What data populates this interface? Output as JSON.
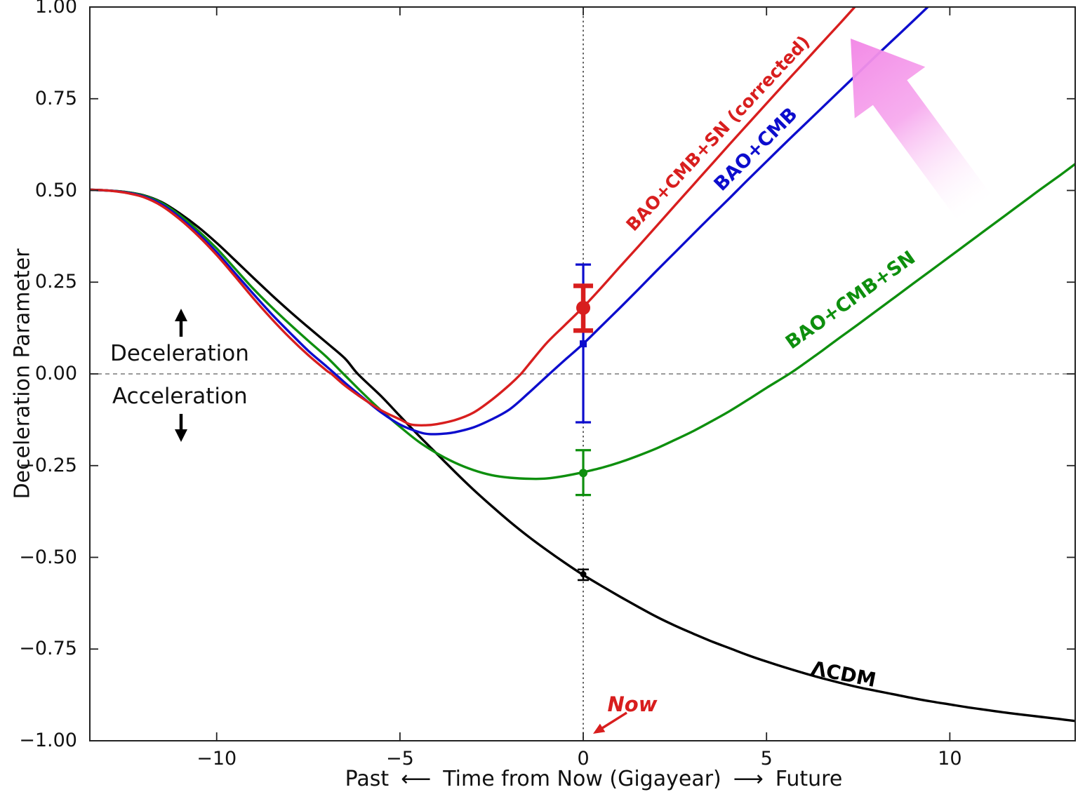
{
  "figure": {
    "y_axis_label": "Deceleration Parameter",
    "x_axis": {
      "past": "Past",
      "left_arrow": "⟵",
      "main": "Time from Now (Gigayear)",
      "right_arrow": "⟶",
      "future": "Future"
    },
    "deceleration_label": "Deceleration",
    "acceleration_label": "Acceleration",
    "now_label": "Now"
  },
  "colors": {
    "red": "#d81e1e",
    "blue": "#0d0dcd",
    "green": "#0e8f0e",
    "black": "#000000",
    "pink_arrow": "#f287e6",
    "dashed_line": "#7a7a7a",
    "axis": "#222222"
  },
  "chart_data": {
    "type": "line",
    "title": "",
    "xlabel": "Past ⟵ Time from Now (Gigayear) ⟶ Future",
    "ylabel": "Deceleration Parameter",
    "xlim": [
      -13.46,
      13.42
    ],
    "ylim": [
      -1.0,
      1.0
    ],
    "grid": false,
    "legend_position": "inline-rotated-labels",
    "x_ticks": {
      "values": [
        -10,
        -5,
        0,
        5,
        10
      ],
      "labels": [
        "−10",
        "−5",
        "0",
        "5",
        "10"
      ]
    },
    "y_ticks": {
      "values": [
        1.0,
        0.75,
        0.5,
        0.25,
        0.0,
        -0.25,
        -0.5,
        -0.75,
        -1.0
      ],
      "labels": [
        "1.00",
        "0.75",
        "0.50",
        "0.25",
        "0.00",
        "−0.25",
        "−0.50",
        "−0.75",
        "−1.00"
      ]
    },
    "reference_lines": {
      "horizontal_at_q": 0,
      "vertical_at_t": 0
    },
    "series": [
      {
        "label": "ΛCDM",
        "color": "#000000",
        "points": [
          [
            -13.46,
            0.502
          ],
          [
            -13,
            0.5
          ],
          [
            -12.5,
            0.496
          ],
          [
            -12,
            0.487
          ],
          [
            -11.5,
            0.468
          ],
          [
            -11,
            0.437
          ],
          [
            -10.5,
            0.4
          ],
          [
            -10,
            0.357
          ],
          [
            -9.5,
            0.31
          ],
          [
            -9,
            0.262
          ],
          [
            -8.5,
            0.215
          ],
          [
            -8,
            0.17
          ],
          [
            -7.5,
            0.127
          ],
          [
            -7,
            0.085
          ],
          [
            -6.5,
            0.042
          ],
          [
            -6.15,
            0
          ],
          [
            -5.5,
            -0.062
          ],
          [
            -5,
            -0.115
          ],
          [
            -4.5,
            -0.167
          ],
          [
            -4,
            -0.217
          ],
          [
            -3.5,
            -0.267
          ],
          [
            -3,
            -0.315
          ],
          [
            -2.5,
            -0.36
          ],
          [
            -2,
            -0.403
          ],
          [
            -1.5,
            -0.443
          ],
          [
            -1,
            -0.48
          ],
          [
            -0.5,
            -0.515
          ],
          [
            0,
            -0.548
          ],
          [
            0.5,
            -0.578
          ],
          [
            1,
            -0.607
          ],
          [
            1.5,
            -0.635
          ],
          [
            2,
            -0.662
          ],
          [
            2.5,
            -0.686
          ],
          [
            3,
            -0.708
          ],
          [
            3.5,
            -0.729
          ],
          [
            4,
            -0.748
          ],
          [
            4.5,
            -0.767
          ],
          [
            5,
            -0.784
          ],
          [
            5.5,
            -0.8
          ],
          [
            6,
            -0.815
          ],
          [
            6.5,
            -0.829
          ],
          [
            7,
            -0.842
          ],
          [
            7.5,
            -0.854
          ],
          [
            8,
            -0.864
          ],
          [
            8.5,
            -0.874
          ],
          [
            9,
            -0.884
          ],
          [
            9.5,
            -0.893
          ],
          [
            10,
            -0.901
          ],
          [
            10.5,
            -0.909
          ],
          [
            11,
            -0.916
          ],
          [
            11.5,
            -0.923
          ],
          [
            12,
            -0.929
          ],
          [
            12.5,
            -0.935
          ],
          [
            13,
            -0.941
          ],
          [
            13.42,
            -0.946
          ]
        ]
      },
      {
        "label": "BAO+CMB+SN",
        "color": "#0e8f0e",
        "points": [
          [
            -13.46,
            0.502
          ],
          [
            -13,
            0.5
          ],
          [
            -12.5,
            0.496
          ],
          [
            -12,
            0.486
          ],
          [
            -11.5,
            0.466
          ],
          [
            -11,
            0.432
          ],
          [
            -10.5,
            0.39
          ],
          [
            -10,
            0.342
          ],
          [
            -9.5,
            0.287
          ],
          [
            -9,
            0.232
          ],
          [
            -8.5,
            0.182
          ],
          [
            -8,
            0.135
          ],
          [
            -7.5,
            0.09
          ],
          [
            -7,
            0.046
          ],
          [
            -6.54,
            0
          ],
          [
            -6,
            -0.054
          ],
          [
            -5.5,
            -0.101
          ],
          [
            -5,
            -0.144
          ],
          [
            -4.5,
            -0.184
          ],
          [
            -4,
            -0.216
          ],
          [
            -3.5,
            -0.242
          ],
          [
            -3,
            -0.262
          ],
          [
            -2.5,
            -0.276
          ],
          [
            -2,
            -0.283
          ],
          [
            -1.4,
            -0.286
          ],
          [
            -1,
            -0.285
          ],
          [
            -0.5,
            -0.278
          ],
          [
            0,
            -0.268
          ],
          [
            0.5,
            -0.256
          ],
          [
            1,
            -0.241
          ],
          [
            1.5,
            -0.223
          ],
          [
            2,
            -0.203
          ],
          [
            2.5,
            -0.18
          ],
          [
            3,
            -0.156
          ],
          [
            3.5,
            -0.129
          ],
          [
            4,
            -0.101
          ],
          [
            4.5,
            -0.07
          ],
          [
            5,
            -0.038
          ],
          [
            5.62,
            0
          ],
          [
            6,
            0.026
          ],
          [
            6.5,
            0.062
          ],
          [
            7,
            0.099
          ],
          [
            7.5,
            0.135
          ],
          [
            8,
            0.172
          ],
          [
            8.5,
            0.209
          ],
          [
            9,
            0.246
          ],
          [
            9.5,
            0.283
          ],
          [
            10,
            0.32
          ],
          [
            10.5,
            0.357
          ],
          [
            11,
            0.394
          ],
          [
            11.5,
            0.431
          ],
          [
            12,
            0.468
          ],
          [
            12.5,
            0.505
          ],
          [
            13,
            0.541
          ],
          [
            13.42,
            0.572
          ]
        ]
      },
      {
        "label": "BAO+CMB",
        "color": "#0d0dcd",
        "points": [
          [
            -13.46,
            0.502
          ],
          [
            -13,
            0.5
          ],
          [
            -12.5,
            0.495
          ],
          [
            -12,
            0.484
          ],
          [
            -11.5,
            0.462
          ],
          [
            -11,
            0.426
          ],
          [
            -10.5,
            0.382
          ],
          [
            -10,
            0.332
          ],
          [
            -9.5,
            0.275
          ],
          [
            -9,
            0.218
          ],
          [
            -8.5,
            0.163
          ],
          [
            -8,
            0.112
          ],
          [
            -7.5,
            0.063
          ],
          [
            -7,
            0.02
          ],
          [
            -6.77,
            0
          ],
          [
            -6.5,
            -0.024
          ],
          [
            -6,
            -0.066
          ],
          [
            -5.5,
            -0.106
          ],
          [
            -5,
            -0.138
          ],
          [
            -4.5,
            -0.158
          ],
          [
            -4.2,
            -0.164
          ],
          [
            -3.8,
            -0.163
          ],
          [
            -3.5,
            -0.159
          ],
          [
            -3,
            -0.146
          ],
          [
            -2.5,
            -0.124
          ],
          [
            -2,
            -0.096
          ],
          [
            -1.5,
            -0.053
          ],
          [
            -1,
            -0.007
          ],
          [
            -0.5,
            0.038
          ],
          [
            0,
            0.082
          ],
          [
            0.5,
            0.131
          ],
          [
            1,
            0.18
          ],
          [
            1.5,
            0.23
          ],
          [
            2,
            0.281
          ],
          [
            2.5,
            0.331
          ],
          [
            3,
            0.381
          ],
          [
            3.5,
            0.431
          ],
          [
            4,
            0.48
          ],
          [
            4.5,
            0.53
          ],
          [
            5,
            0.579
          ],
          [
            5.5,
            0.628
          ],
          [
            6,
            0.676
          ],
          [
            6.5,
            0.724
          ],
          [
            7,
            0.772
          ],
          [
            7.5,
            0.82
          ],
          [
            8,
            0.868
          ],
          [
            8.5,
            0.915
          ],
          [
            9,
            0.962
          ],
          [
            9.45,
            1.005
          ]
        ]
      },
      {
        "label": "BAO+CMB+SN (corrected)",
        "color": "#d81e1e",
        "points": [
          [
            -13.46,
            0.502
          ],
          [
            -13,
            0.5
          ],
          [
            -12.5,
            0.494
          ],
          [
            -12,
            0.482
          ],
          [
            -11.5,
            0.458
          ],
          [
            -11,
            0.421
          ],
          [
            -10.5,
            0.376
          ],
          [
            -10,
            0.324
          ],
          [
            -9.5,
            0.266
          ],
          [
            -9,
            0.206
          ],
          [
            -8.5,
            0.15
          ],
          [
            -8,
            0.098
          ],
          [
            -7.5,
            0.051
          ],
          [
            -7,
            0.009
          ],
          [
            -6.87,
            0
          ],
          [
            -6.5,
            -0.032
          ],
          [
            -6,
            -0.068
          ],
          [
            -5.5,
            -0.1
          ],
          [
            -5,
            -0.124
          ],
          [
            -4.7,
            -0.138
          ],
          [
            -4.3,
            -0.14
          ],
          [
            -4,
            -0.137
          ],
          [
            -3.5,
            -0.126
          ],
          [
            -3,
            -0.106
          ],
          [
            -2.5,
            -0.071
          ],
          [
            -2,
            -0.029
          ],
          [
            -1.7,
            0
          ],
          [
            -1.5,
            0.024
          ],
          [
            -1,
            0.084
          ],
          [
            -0.5,
            0.133
          ],
          [
            0,
            0.182
          ],
          [
            0.5,
            0.236
          ],
          [
            1,
            0.292
          ],
          [
            1.5,
            0.347
          ],
          [
            2,
            0.403
          ],
          [
            2.5,
            0.459
          ],
          [
            3,
            0.515
          ],
          [
            3.5,
            0.571
          ],
          [
            4,
            0.627
          ],
          [
            4.5,
            0.682
          ],
          [
            5,
            0.737
          ],
          [
            5.5,
            0.792
          ],
          [
            6,
            0.846
          ],
          [
            6.5,
            0.901
          ],
          [
            7,
            0.955
          ],
          [
            7.45,
            1.005
          ]
        ]
      }
    ],
    "error_bars": [
      {
        "label": "BAO+CMB",
        "color": "#0d0dcd",
        "x": 0,
        "y": 0.082,
        "y_lo": -0.132,
        "y_hi": 0.298,
        "marker": "square",
        "marker_size": 5,
        "line_width": 3.2,
        "cap_half": 11
      },
      {
        "label": "BAO+CMB+SN",
        "color": "#0e8f0e",
        "x": 0,
        "y": -0.27,
        "y_lo": -0.33,
        "y_hi": -0.208,
        "marker": "circle",
        "marker_size": 6,
        "line_width": 3.2,
        "cap_half": 11
      },
      {
        "label": "ΛCDM",
        "color": "#000000",
        "x": 0,
        "y": -0.546,
        "y_lo": -0.562,
        "y_hi": -0.533,
        "marker": "circle",
        "marker_size": 4.5,
        "line_width": 2.6,
        "cap_half": 8
      },
      {
        "label": "BAO+CMB+SN (corrected)",
        "color": "#d81e1e",
        "x": 0,
        "y": 0.18,
        "y_lo": 0.118,
        "y_hi": 0.24,
        "marker": "circle",
        "marker_size": 10,
        "line_width": 6.5,
        "cap_half": 14
      }
    ],
    "annotations": {
      "deceleration": "Deceleration",
      "acceleration": "Acceleration",
      "now": "Now",
      "trend_arrow": "pink arrow pointing up-left toward corrected curve"
    }
  }
}
